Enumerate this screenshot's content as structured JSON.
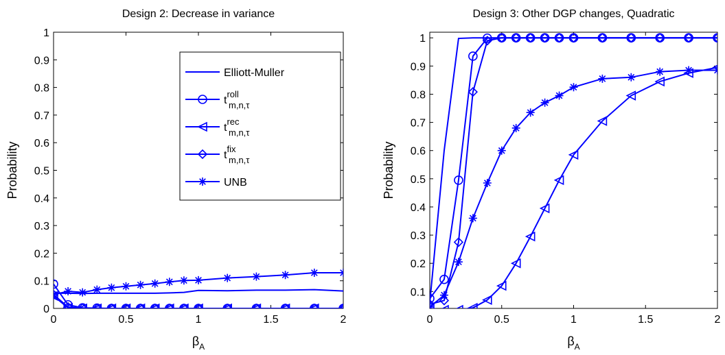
{
  "colors": {
    "series": "#0000ff",
    "axis": "#000000",
    "background": "#ffffff"
  },
  "legend": {
    "placement": "top-right",
    "entries": [
      {
        "label": "Elliott-Muller",
        "marker": "none"
      },
      {
        "label": "t",
        "sup": "roll",
        "sub": "m,n,τ",
        "marker": "circle"
      },
      {
        "label": "t",
        "sup": "rec",
        "sub": "m,n,τ",
        "marker": "triangle-left"
      },
      {
        "label": "t",
        "sup": "fix",
        "sub": "m,n,τ",
        "marker": "diamond"
      },
      {
        "label": "UNB",
        "marker": "asterisk"
      }
    ]
  },
  "chart_data": [
    {
      "type": "line",
      "title": "Design 2: Decrease in variance",
      "xlabel": "β",
      "xlabel_sub": "A",
      "ylabel": "Probability",
      "xlim": [
        0,
        2
      ],
      "ylim": [
        0,
        1
      ],
      "xticks": [
        0,
        0.5,
        1,
        1.5,
        2
      ],
      "xtick_labels": [
        "0",
        "0.5",
        "1",
        "1.5",
        "2"
      ],
      "yticks": [
        0,
        0.1,
        0.2,
        0.3,
        0.4,
        0.5,
        0.6,
        0.7,
        0.8,
        0.9,
        1
      ],
      "ytick_labels": [
        "0",
        "0.1",
        "0.2",
        "0.3",
        "0.4",
        "0.5",
        "0.6",
        "0.7",
        "0.8",
        "0.9",
        "1"
      ],
      "grid": false,
      "legend": true,
      "x": [
        0,
        0.1,
        0.2,
        0.3,
        0.4,
        0.5,
        0.6,
        0.7,
        0.8,
        0.9,
        1,
        1.2,
        1.4,
        1.6,
        1.8,
        2
      ],
      "series": [
        {
          "name": "Elliott-Muller",
          "marker": "none",
          "values": [
            0.055,
            0.055,
            0.054,
            0.055,
            0.055,
            0.055,
            0.055,
            0.055,
            0.056,
            0.058,
            0.065,
            0.064,
            0.066,
            0.066,
            0.068,
            0.063
          ]
        },
        {
          "name": "t roll",
          "marker": "circle",
          "values": [
            0.088,
            0.013,
            0.002,
            0.001,
            0,
            0,
            0,
            0,
            0,
            0,
            0,
            0,
            0,
            0,
            0,
            0
          ]
        },
        {
          "name": "t rec",
          "marker": "triangle-left",
          "values": [
            0.045,
            0.002,
            0,
            0,
            0,
            0,
            0,
            0,
            0,
            0,
            0,
            0,
            0,
            0,
            0,
            0
          ]
        },
        {
          "name": "t fix",
          "marker": "diamond",
          "values": [
            0.05,
            0.005,
            0.001,
            0,
            0,
            0,
            0,
            0,
            0,
            0,
            0,
            0,
            0,
            0,
            0,
            0
          ]
        },
        {
          "name": "UNB",
          "marker": "asterisk",
          "values": [
            0.05,
            0.062,
            0.058,
            0.068,
            0.075,
            0.08,
            0.085,
            0.09,
            0.096,
            0.101,
            0.102,
            0.11,
            0.115,
            0.121,
            0.129,
            0.129
          ]
        }
      ]
    },
    {
      "type": "line",
      "title": "Design 3: Other DGP changes, Quadratic",
      "xlabel": "β",
      "xlabel_sub": "A",
      "ylabel": "Probability",
      "xlim": [
        0,
        2
      ],
      "ylim": [
        0.04,
        1.02
      ],
      "xticks": [
        0,
        0.5,
        1,
        1.5,
        2
      ],
      "xtick_labels": [
        "0",
        "0.5",
        "1",
        "1.5",
        "2"
      ],
      "yticks": [
        0.1,
        0.2,
        0.3,
        0.4,
        0.5,
        0.6,
        0.7,
        0.8,
        0.9,
        1
      ],
      "ytick_labels": [
        "0.1",
        "0.2",
        "0.3",
        "0.4",
        "0.5",
        "0.6",
        "0.7",
        "0.8",
        "0.9",
        "1"
      ],
      "grid": false,
      "legend": false,
      "x": [
        0,
        0.1,
        0.2,
        0.3,
        0.4,
        0.5,
        0.6,
        0.7,
        0.8,
        0.9,
        1,
        1.2,
        1.4,
        1.6,
        1.8,
        2
      ],
      "series": [
        {
          "name": "Elliott-Muller",
          "marker": "none",
          "values": [
            0.06,
            0.6,
            0.998,
            1,
            1,
            1,
            1,
            1,
            1,
            1,
            1,
            1,
            1,
            1,
            1,
            1
          ]
        },
        {
          "name": "t roll",
          "marker": "circle",
          "values": [
            0.075,
            0.143,
            0.495,
            0.935,
            0.999,
            1,
            1,
            1,
            1,
            1,
            1,
            1,
            1,
            1,
            1,
            1
          ]
        },
        {
          "name": "t rec",
          "marker": "triangle-left",
          "values": [
            0.04,
            0.035,
            0.035,
            0.042,
            0.07,
            0.12,
            0.2,
            0.295,
            0.395,
            0.495,
            0.585,
            0.705,
            0.795,
            0.845,
            0.875,
            0.895
          ]
        },
        {
          "name": "t fix",
          "marker": "diamond",
          "values": [
            0.055,
            0.068,
            0.275,
            0.808,
            0.99,
            1,
            1,
            1,
            1,
            1,
            1,
            1,
            1,
            1,
            1,
            1
          ]
        },
        {
          "name": "UNB",
          "marker": "asterisk",
          "values": [
            0.045,
            0.087,
            0.205,
            0.36,
            0.485,
            0.6,
            0.68,
            0.735,
            0.77,
            0.795,
            0.825,
            0.855,
            0.86,
            0.88,
            0.885,
            0.885
          ]
        }
      ]
    }
  ]
}
